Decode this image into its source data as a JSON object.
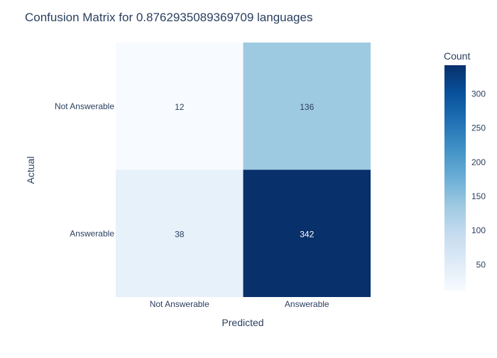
{
  "chart_data": {
    "type": "heatmap",
    "title": "Confusion Matrix for 0.8762935089369709 languages",
    "xlabel": "Predicted",
    "ylabel": "Actual",
    "x_categories": [
      "Not Answerable",
      "Answerable"
    ],
    "y_categories": [
      "Not Answerable",
      "Answerable"
    ],
    "z": [
      [
        12,
        136
      ],
      [
        38,
        342
      ]
    ],
    "colorscale_name": "Blues",
    "colorscale": [
      "#f7fbff",
      "#deebf7",
      "#c6dbef",
      "#9ecae1",
      "#6baed6",
      "#4292c6",
      "#2171b5",
      "#08519c",
      "#08306b"
    ],
    "zmin": 12,
    "zmax": 342,
    "colorbar": {
      "title": "Count",
      "ticks": [
        50,
        100,
        150,
        200,
        250,
        300
      ]
    },
    "text_color_dark": "#2a3f5f",
    "text_color_light": "#ffffff",
    "title_color": "#2a3f5f"
  }
}
